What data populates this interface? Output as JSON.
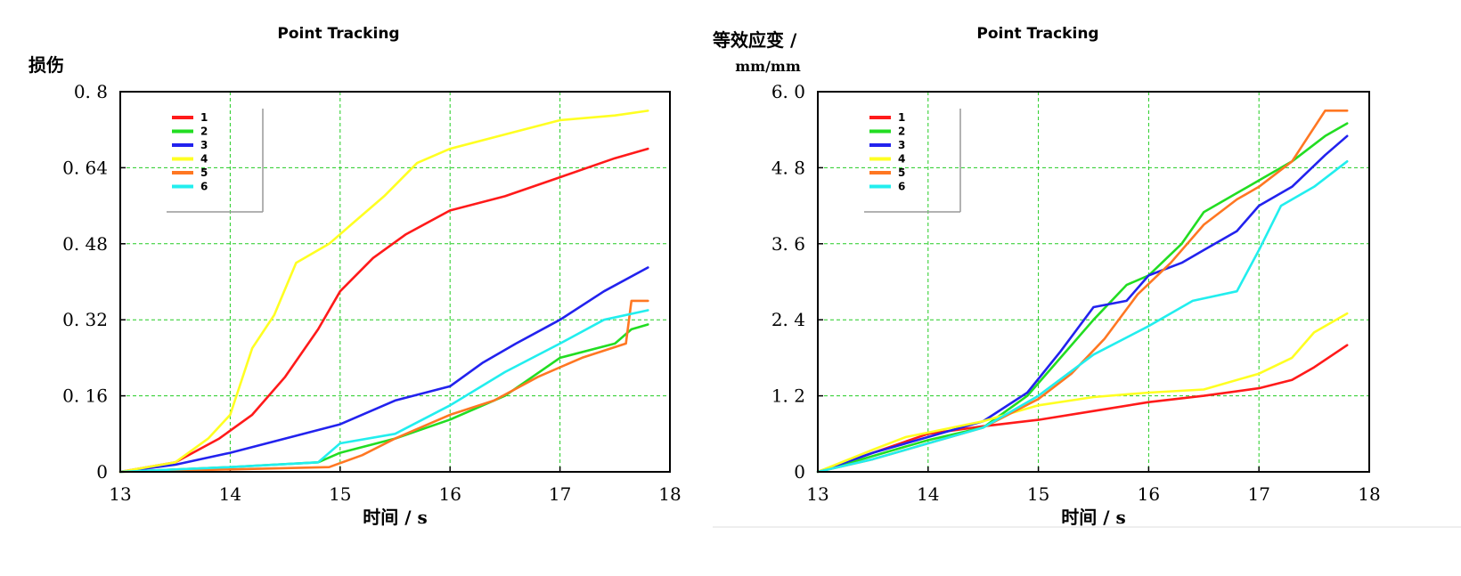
{
  "chart_data": [
    {
      "type": "line",
      "title": "Point Tracking",
      "ylabel": "损伤",
      "ylabel_unit": "",
      "xlabel": "时间 / s",
      "xlim": [
        13,
        18
      ],
      "ylim": [
        0,
        0.8
      ],
      "xticks": [
        "13",
        "14",
        "15",
        "16",
        "17",
        "18"
      ],
      "yticks": [
        "0",
        "0. 16",
        "0. 32",
        "0. 48",
        "0. 64",
        "0. 8"
      ],
      "grid": true,
      "legend_position": "top-left",
      "series": [
        {
          "name": "1",
          "color": "#ff1a1a",
          "x": [
            13,
            13.5,
            13.9,
            14.2,
            14.5,
            14.8,
            15.0,
            15.3,
            15.6,
            16.0,
            16.5,
            17.0,
            17.5,
            17.8
          ],
          "y": [
            0,
            0.02,
            0.07,
            0.12,
            0.2,
            0.3,
            0.38,
            0.45,
            0.5,
            0.55,
            0.58,
            0.62,
            0.66,
            0.68
          ]
        },
        {
          "name": "2",
          "color": "#22dd22",
          "x": [
            13,
            14,
            14.8,
            15.0,
            15.5,
            16.0,
            16.5,
            17.0,
            17.5,
            17.65,
            17.8
          ],
          "y": [
            0,
            0.01,
            0.02,
            0.04,
            0.07,
            0.11,
            0.16,
            0.24,
            0.27,
            0.3,
            0.31
          ]
        },
        {
          "name": "3",
          "color": "#2222ee",
          "x": [
            13,
            13.5,
            14,
            14.5,
            15,
            15.5,
            16,
            16.3,
            16.6,
            17,
            17.4,
            17.8
          ],
          "y": [
            0,
            0.015,
            0.04,
            0.07,
            0.1,
            0.15,
            0.18,
            0.23,
            0.27,
            0.32,
            0.38,
            0.43
          ]
        },
        {
          "name": "4",
          "color": "#ffff22",
          "x": [
            13,
            13.5,
            13.8,
            14.0,
            14.2,
            14.4,
            14.6,
            14.9,
            15.1,
            15.4,
            15.7,
            16.0,
            16.5,
            17.0,
            17.5,
            17.8
          ],
          "y": [
            0,
            0.02,
            0.07,
            0.12,
            0.26,
            0.33,
            0.44,
            0.48,
            0.52,
            0.58,
            0.65,
            0.68,
            0.71,
            0.74,
            0.75,
            0.76
          ]
        },
        {
          "name": "5",
          "color": "#ff7722",
          "x": [
            13,
            14,
            14.9,
            15.2,
            15.5,
            16.0,
            16.4,
            16.8,
            17.2,
            17.6,
            17.65,
            17.8
          ],
          "y": [
            0,
            0.005,
            0.01,
            0.035,
            0.07,
            0.12,
            0.15,
            0.2,
            0.24,
            0.27,
            0.36,
            0.36
          ]
        },
        {
          "name": "6",
          "color": "#22eeee",
          "x": [
            13,
            14,
            14.8,
            15.0,
            15.5,
            16.0,
            16.5,
            17.0,
            17.4,
            17.8
          ],
          "y": [
            0,
            0.01,
            0.02,
            0.06,
            0.08,
            0.14,
            0.21,
            0.27,
            0.32,
            0.34
          ]
        }
      ]
    },
    {
      "type": "line",
      "title": "Point Tracking",
      "ylabel": "等效应变 /",
      "ylabel_unit": "mm/mm",
      "xlabel": "时间 / s",
      "xlim": [
        13,
        18
      ],
      "ylim": [
        0,
        6.0
      ],
      "xticks": [
        "13",
        "14",
        "15",
        "16",
        "17",
        "18"
      ],
      "yticks": [
        "0",
        "1. 2",
        "2. 4",
        "3. 6",
        "4. 8",
        "6. 0"
      ],
      "grid": true,
      "legend_position": "top-left",
      "series": [
        {
          "name": "1",
          "color": "#ff1a1a",
          "x": [
            13,
            13.5,
            14,
            14.5,
            15,
            15.5,
            16,
            16.5,
            17,
            17.3,
            17.5,
            17.8
          ],
          "y": [
            0,
            0.3,
            0.6,
            0.72,
            0.82,
            0.96,
            1.1,
            1.2,
            1.32,
            1.45,
            1.65,
            2.0
          ]
        },
        {
          "name": "2",
          "color": "#22dd22",
          "x": [
            13,
            13.5,
            14,
            14.5,
            14.9,
            15.2,
            15.5,
            15.8,
            16.0,
            16.3,
            16.5,
            16.8,
            17,
            17.3,
            17.6,
            17.8
          ],
          "y": [
            0,
            0.25,
            0.5,
            0.7,
            1.2,
            1.8,
            2.4,
            2.95,
            3.1,
            3.6,
            4.1,
            4.4,
            4.6,
            4.9,
            5.3,
            5.5
          ]
        },
        {
          "name": "3",
          "color": "#2222ee",
          "x": [
            13,
            13.5,
            14,
            14.5,
            14.9,
            15.2,
            15.5,
            15.8,
            16.0,
            16.3,
            16.5,
            16.8,
            17.0,
            17.3,
            17.6,
            17.8
          ],
          "y": [
            0,
            0.3,
            0.55,
            0.8,
            1.25,
            1.9,
            2.6,
            2.7,
            3.1,
            3.3,
            3.5,
            3.8,
            4.2,
            4.5,
            5.0,
            5.3
          ]
        },
        {
          "name": "4",
          "color": "#ffff22",
          "x": [
            13,
            13.5,
            13.8,
            14,
            14.5,
            15,
            15.5,
            16,
            16.5,
            17,
            17.3,
            17.5,
            17.8
          ],
          "y": [
            0,
            0.35,
            0.55,
            0.62,
            0.8,
            1.05,
            1.18,
            1.25,
            1.3,
            1.55,
            1.8,
            2.2,
            2.5
          ]
        },
        {
          "name": "5",
          "color": "#ff7722",
          "x": [
            13,
            13.5,
            14,
            14.5,
            15,
            15.3,
            15.6,
            15.9,
            16.2,
            16.5,
            16.8,
            17.0,
            17.3,
            17.6,
            17.8
          ],
          "y": [
            0,
            0.2,
            0.45,
            0.7,
            1.15,
            1.55,
            2.1,
            2.8,
            3.3,
            3.9,
            4.3,
            4.5,
            4.9,
            5.7,
            5.7
          ]
        },
        {
          "name": "6",
          "color": "#22eeee",
          "x": [
            13,
            13.5,
            14,
            14.5,
            15,
            15.5,
            16,
            16.4,
            16.8,
            17.0,
            17.2,
            17.5,
            17.8
          ],
          "y": [
            0,
            0.2,
            0.45,
            0.7,
            1.2,
            1.85,
            2.3,
            2.7,
            2.85,
            3.5,
            4.2,
            4.5,
            4.9
          ]
        }
      ]
    }
  ]
}
